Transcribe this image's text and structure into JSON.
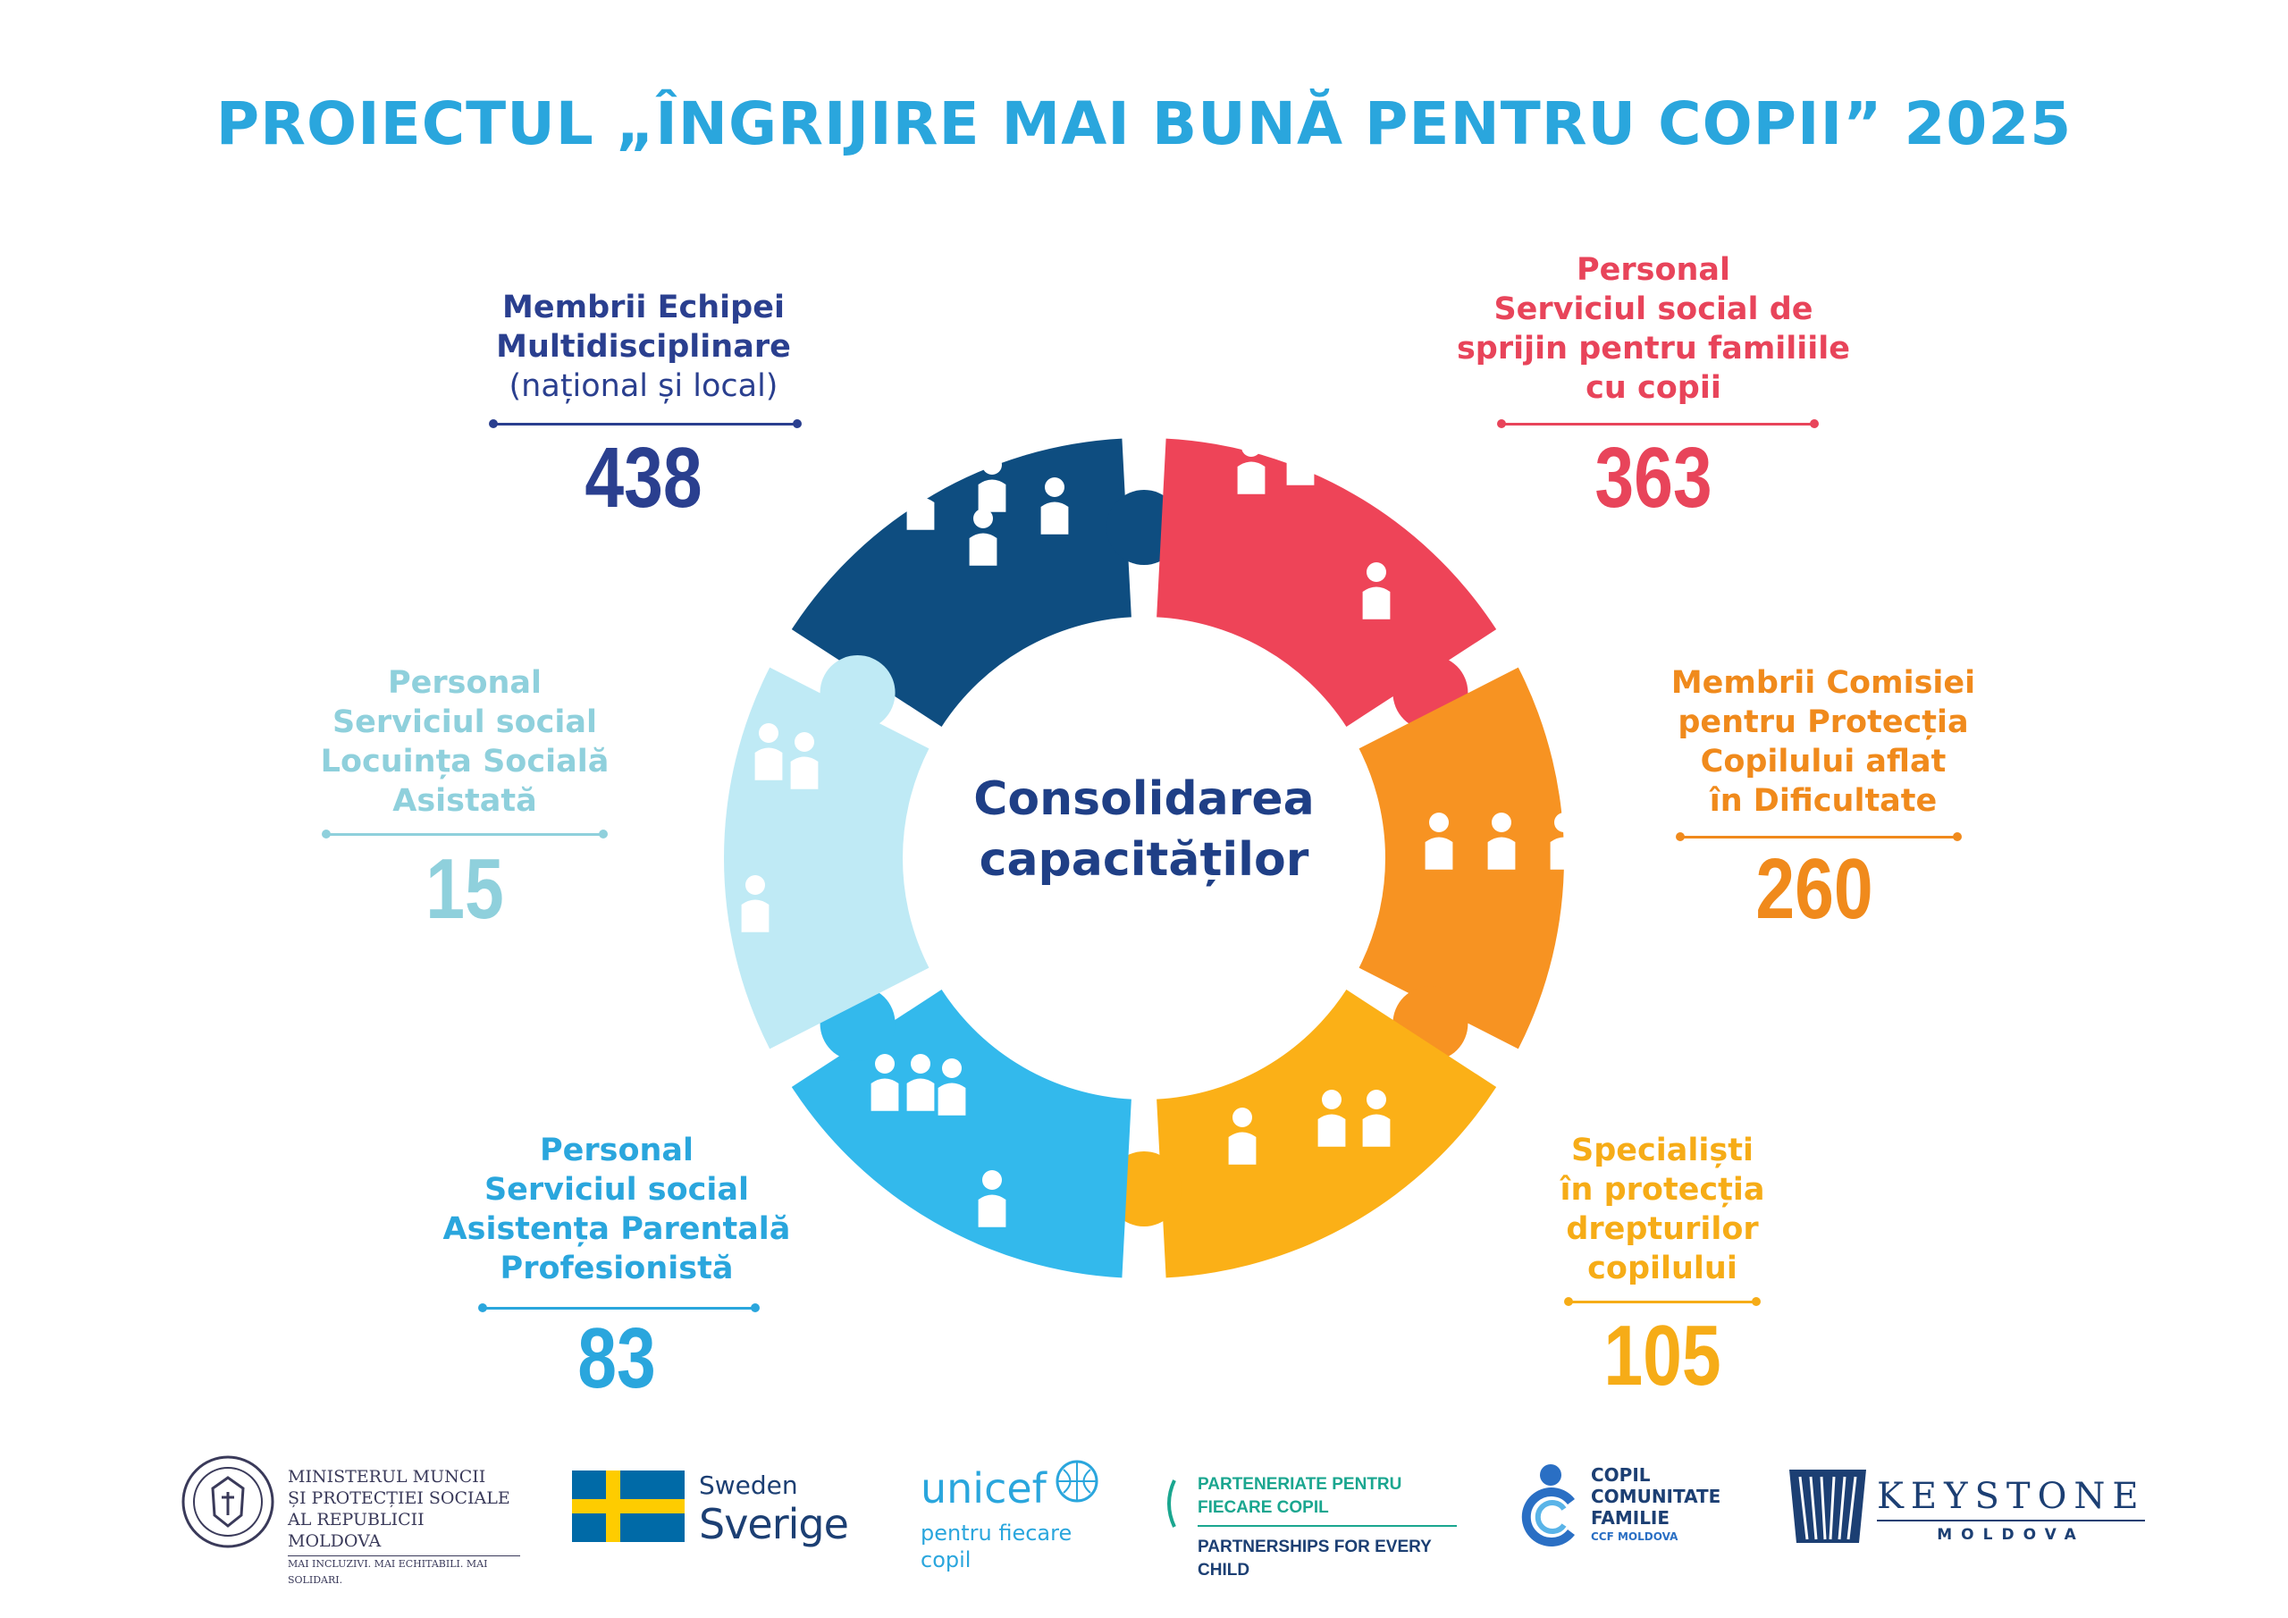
{
  "title": "PROIECTUL „ÎNGRIJIRE MAI BUNĂ PENTRU COPII” 2025",
  "center": {
    "line1": "Consolidarea",
    "line2": "capacităților"
  },
  "colors": {
    "title": "#2aa6dd",
    "navy": "#0e4d80",
    "red": "#ee4458",
    "orange": "#f79322",
    "yellow": "#fbb017",
    "blue": "#33b9ec",
    "light": "#bfeaf5",
    "center_text": "#1f3f86"
  },
  "segments": [
    {
      "id": "echipa",
      "lines": [
        "Membrii Echipei",
        "Multidisciplinare"
      ],
      "sub": "(național și local)",
      "value": "438",
      "color": "#2a3f8f",
      "icon": "team-meeting-icon"
    },
    {
      "id": "sprijin",
      "lines": [
        "Personal",
        "Serviciul social de",
        "sprijin pentru familiile",
        "cu copii"
      ],
      "value": "363",
      "color": "#e8445a",
      "icon": "family-support-icon"
    },
    {
      "id": "comisie",
      "lines": [
        "Membrii Comisiei",
        "pentru Protecția",
        "Copilului aflat",
        "în Dificultate"
      ],
      "value": "260",
      "color": "#f08a1c",
      "icon": "commission-discussion-icon"
    },
    {
      "id": "specialisti",
      "lines": [
        "Specialiști",
        "în protecția",
        "drepturilor",
        "copilului"
      ],
      "value": "105",
      "color": "#f6ac17",
      "icon": "child-protection-shield-icon"
    },
    {
      "id": "asistenta",
      "lines": [
        "Personal",
        "Serviciul social",
        "Asistența Parentală",
        "Profesionistă"
      ],
      "value": "83",
      "color": "#2aa6dd",
      "icon": "foster-family-icon"
    },
    {
      "id": "locuinta",
      "lines": [
        "Personal",
        "Serviciul social",
        "Locuința Socială",
        "Asistată"
      ],
      "value": "15",
      "color": "#8fd0dc",
      "icon": "social-housing-icon"
    }
  ],
  "footer": {
    "ministry": {
      "line1": "MINISTERUL MUNCII",
      "line2": "ȘI PROTECȚIEI SOCIALE",
      "line3": "AL REPUBLICII MOLDOVA",
      "tagline": "MAI INCLUZIVI. MAI ECHITABILI. MAI SOLIDARI."
    },
    "sweden": {
      "line1": "Sweden",
      "line2": "Sverige"
    },
    "unicef": {
      "name": "unicef",
      "tagline": "pentru fiecare copil"
    },
    "parteneriate": {
      "line1": "PARTENERIATE PENTRU FIECARE COPIL",
      "line2": "PARTNERSHIPS FOR EVERY CHILD"
    },
    "ccf": {
      "line1": "COPIL",
      "line2": "COMUNITATE",
      "line3": "FAMILIE",
      "line4": "CCF MOLDOVA"
    },
    "keystone": {
      "line1": "KEYSTONE",
      "line2": "MOLDOVA"
    }
  }
}
